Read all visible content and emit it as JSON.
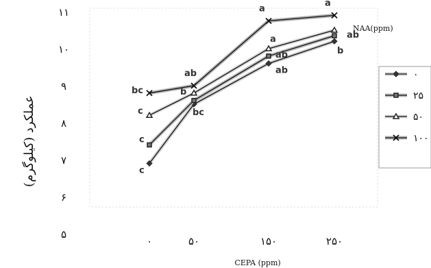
{
  "chart_data": {
    "type": "line",
    "title": "",
    "xlabel": "CEPA (ppm)",
    "ylabel": "عملکرد (کیلوگرم)",
    "legend_title": "NAA(ppm)",
    "categories": [
      "۰",
      "۵۰",
      "۱۵۰",
      "۲۵۰"
    ],
    "x": [
      0,
      50,
      150,
      250
    ],
    "ylim": [
      5,
      11
    ],
    "yticks": [
      "۵",
      "۶",
      "۷",
      "۸",
      "۹",
      "۱۰",
      "۱۱"
    ],
    "grid": false,
    "legend_position": "right",
    "series": [
      {
        "name": "۰",
        "marker": "diamond",
        "values": [
          6.9,
          8.5,
          9.6,
          10.2
        ],
        "labels": [
          "c",
          "bc",
          "ab",
          "b"
        ]
      },
      {
        "name": "۲۵",
        "marker": "square",
        "values": [
          7.4,
          8.6,
          9.8,
          10.35
        ],
        "labels": [
          "c",
          "",
          "ab",
          "ab"
        ]
      },
      {
        "name": "۵۰",
        "marker": "triangle",
        "values": [
          8.2,
          8.8,
          10.0,
          10.5
        ],
        "labels": [
          "c",
          "b",
          "a",
          ""
        ]
      },
      {
        "name": "۱۰۰",
        "marker": "x",
        "values": [
          8.8,
          9.0,
          10.75,
          10.9
        ],
        "labels": [
          "bc",
          "ab",
          "a",
          "a"
        ]
      }
    ]
  }
}
